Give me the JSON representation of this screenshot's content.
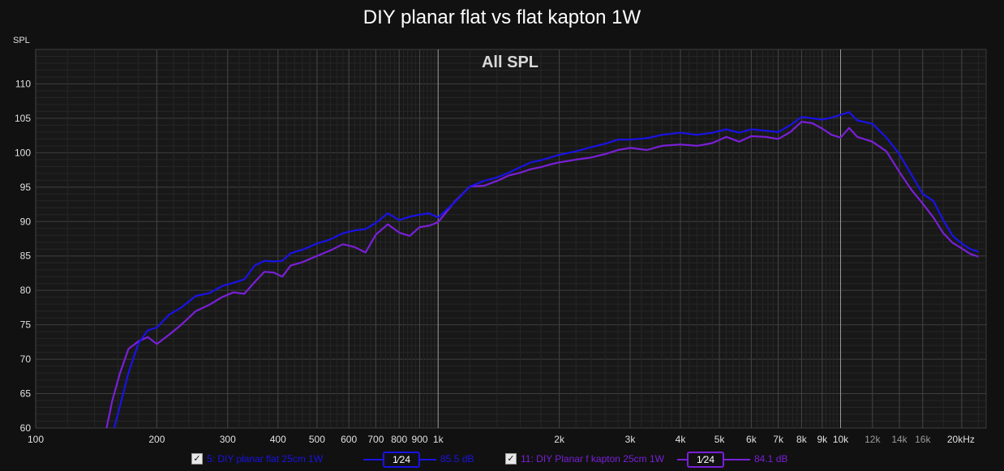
{
  "chart_data": {
    "type": "line",
    "title": "DIY planar flat vs flat kapton 1W",
    "subtitle": "All SPL",
    "xlabel": "",
    "ylabel": "SPL",
    "x_scale": "log",
    "xlim": [
      100,
      23000
    ],
    "ylim": [
      60,
      115
    ],
    "y_ticks": [
      60,
      65,
      70,
      75,
      80,
      85,
      90,
      95,
      100,
      105,
      110
    ],
    "x_ticks": [
      {
        "value": 100,
        "label": "100",
        "emphasis": "major"
      },
      {
        "value": 200,
        "label": "200",
        "emphasis": "major"
      },
      {
        "value": 300,
        "label": "300",
        "emphasis": "major"
      },
      {
        "value": 400,
        "label": "400",
        "emphasis": "major"
      },
      {
        "value": 500,
        "label": "500",
        "emphasis": "major"
      },
      {
        "value": 600,
        "label": "600",
        "emphasis": "major"
      },
      {
        "value": 700,
        "label": "700",
        "emphasis": "major"
      },
      {
        "value": 800,
        "label": "800",
        "emphasis": "major"
      },
      {
        "value": 900,
        "label": "900",
        "emphasis": "major"
      },
      {
        "value": 1000,
        "label": "1k",
        "emphasis": "major"
      },
      {
        "value": 2000,
        "label": "2k",
        "emphasis": "major"
      },
      {
        "value": 3000,
        "label": "3k",
        "emphasis": "major"
      },
      {
        "value": 4000,
        "label": "4k",
        "emphasis": "major"
      },
      {
        "value": 5000,
        "label": "5k",
        "emphasis": "major"
      },
      {
        "value": 6000,
        "label": "6k",
        "emphasis": "major"
      },
      {
        "value": 7000,
        "label": "7k",
        "emphasis": "major"
      },
      {
        "value": 8000,
        "label": "8k",
        "emphasis": "major"
      },
      {
        "value": 9000,
        "label": "9k",
        "emphasis": "major"
      },
      {
        "value": 10000,
        "label": "10k",
        "emphasis": "major"
      },
      {
        "value": 12000,
        "label": "12k",
        "emphasis": "minor"
      },
      {
        "value": 14000,
        "label": "14k",
        "emphasis": "minor"
      },
      {
        "value": 16000,
        "label": "16k",
        "emphasis": "minor"
      },
      {
        "value": 20000,
        "label": "20kHz",
        "emphasis": "major"
      }
    ],
    "grid": true,
    "series": [
      {
        "name": "5: DIY planar flat 25cm 1W",
        "color": "#1a12e6",
        "points": [
          [
            150,
            56
          ],
          [
            160,
            62
          ],
          [
            170,
            68
          ],
          [
            180,
            72.3
          ],
          [
            190,
            74.2
          ],
          [
            200,
            74.6
          ],
          [
            215,
            76.5
          ],
          [
            230,
            77.5
          ],
          [
            250,
            79.2
          ],
          [
            270,
            79.6
          ],
          [
            290,
            80.6
          ],
          [
            310,
            81.1
          ],
          [
            330,
            81.6
          ],
          [
            350,
            83.6
          ],
          [
            370,
            84.3
          ],
          [
            390,
            84.2
          ],
          [
            410,
            84.3
          ],
          [
            430,
            85.4
          ],
          [
            460,
            85.9
          ],
          [
            500,
            86.8
          ],
          [
            540,
            87.4
          ],
          [
            580,
            88.3
          ],
          [
            620,
            88.7
          ],
          [
            660,
            88.9
          ],
          [
            700,
            89.8
          ],
          [
            750,
            91.2
          ],
          [
            800,
            90.2
          ],
          [
            850,
            90.7
          ],
          [
            900,
            91.0
          ],
          [
            950,
            91.2
          ],
          [
            1000,
            90.6
          ],
          [
            1100,
            92.8
          ],
          [
            1200,
            95.1
          ],
          [
            1300,
            95.9
          ],
          [
            1400,
            96.4
          ],
          [
            1500,
            97.1
          ],
          [
            1600,
            97.9
          ],
          [
            1700,
            98.6
          ],
          [
            1800,
            98.9
          ],
          [
            1900,
            99.3
          ],
          [
            2000,
            99.7
          ],
          [
            2200,
            100.2
          ],
          [
            2400,
            100.8
          ],
          [
            2600,
            101.3
          ],
          [
            2800,
            101.9
          ],
          [
            3000,
            101.9
          ],
          [
            3300,
            102.1
          ],
          [
            3600,
            102.6
          ],
          [
            4000,
            102.9
          ],
          [
            4400,
            102.6
          ],
          [
            4800,
            102.9
          ],
          [
            5200,
            103.4
          ],
          [
            5600,
            102.9
          ],
          [
            6000,
            103.4
          ],
          [
            6500,
            103.2
          ],
          [
            7000,
            103.0
          ],
          [
            7500,
            104.0
          ],
          [
            8000,
            105.2
          ],
          [
            8500,
            105.0
          ],
          [
            9000,
            104.8
          ],
          [
            9500,
            105.1
          ],
          [
            10000,
            105.5
          ],
          [
            10500,
            105.9
          ],
          [
            11000,
            104.7
          ],
          [
            12000,
            104.2
          ],
          [
            13000,
            102.2
          ],
          [
            14000,
            99.8
          ],
          [
            15000,
            96.8
          ],
          [
            16000,
            94.0
          ],
          [
            17000,
            93.0
          ],
          [
            18000,
            90.2
          ],
          [
            19000,
            87.9
          ],
          [
            20000,
            86.8
          ],
          [
            21000,
            86.0
          ],
          [
            22000,
            85.6
          ]
        ]
      },
      {
        "name": "11: DIY Planar f kapton 25cm 1W",
        "color": "#7a1fd8",
        "points": [
          [
            145,
            56
          ],
          [
            150,
            60
          ],
          [
            155,
            64
          ],
          [
            162,
            68
          ],
          [
            170,
            71.5
          ],
          [
            180,
            72.6
          ],
          [
            190,
            73.2
          ],
          [
            200,
            72.2
          ],
          [
            215,
            73.6
          ],
          [
            230,
            75.0
          ],
          [
            250,
            77.0
          ],
          [
            270,
            77.9
          ],
          [
            290,
            79.0
          ],
          [
            310,
            79.7
          ],
          [
            330,
            79.5
          ],
          [
            350,
            81.2
          ],
          [
            370,
            82.7
          ],
          [
            390,
            82.6
          ],
          [
            410,
            82.0
          ],
          [
            430,
            83.6
          ],
          [
            460,
            84.1
          ],
          [
            500,
            85.0
          ],
          [
            540,
            85.8
          ],
          [
            580,
            86.7
          ],
          [
            620,
            86.3
          ],
          [
            660,
            85.5
          ],
          [
            700,
            88.1
          ],
          [
            750,
            89.6
          ],
          [
            800,
            88.4
          ],
          [
            850,
            87.9
          ],
          [
            900,
            89.2
          ],
          [
            950,
            89.4
          ],
          [
            1000,
            89.9
          ],
          [
            1100,
            92.9
          ],
          [
            1200,
            95.1
          ],
          [
            1300,
            95.2
          ],
          [
            1400,
            95.9
          ],
          [
            1500,
            96.7
          ],
          [
            1600,
            97.1
          ],
          [
            1700,
            97.6
          ],
          [
            1800,
            97.9
          ],
          [
            1900,
            98.3
          ],
          [
            2000,
            98.6
          ],
          [
            2200,
            99.0
          ],
          [
            2400,
            99.3
          ],
          [
            2600,
            99.8
          ],
          [
            2800,
            100.4
          ],
          [
            3000,
            100.7
          ],
          [
            3300,
            100.4
          ],
          [
            3600,
            101.0
          ],
          [
            4000,
            101.2
          ],
          [
            4400,
            101.0
          ],
          [
            4800,
            101.4
          ],
          [
            5200,
            102.3
          ],
          [
            5600,
            101.6
          ],
          [
            6000,
            102.4
          ],
          [
            6500,
            102.3
          ],
          [
            7000,
            102.0
          ],
          [
            7500,
            103.0
          ],
          [
            8000,
            104.5
          ],
          [
            8500,
            104.3
          ],
          [
            9000,
            103.5
          ],
          [
            9500,
            102.6
          ],
          [
            10000,
            102.2
          ],
          [
            10500,
            103.6
          ],
          [
            11000,
            102.3
          ],
          [
            12000,
            101.6
          ],
          [
            13000,
            100.2
          ],
          [
            14000,
            97.2
          ],
          [
            15000,
            94.6
          ],
          [
            16000,
            92.6
          ],
          [
            17000,
            90.6
          ],
          [
            18000,
            88.3
          ],
          [
            19000,
            86.9
          ],
          [
            20000,
            86.1
          ],
          [
            21000,
            85.3
          ],
          [
            22000,
            84.9
          ]
        ]
      }
    ],
    "legend": {
      "placement": "bottom",
      "items": [
        {
          "checked": true,
          "checkmark": "✓",
          "label": "5: DIY planar flat 25cm 1W",
          "smoothing": "1⁄24",
          "value": "85.5 dB",
          "color": "#1a12e6"
        },
        {
          "checked": true,
          "checkmark": "✓",
          "label": "11: DIY Planar f kapton 25cm 1W",
          "smoothing": "1⁄24",
          "value": "84.1 dB",
          "color": "#7a1fd8"
        }
      ]
    }
  }
}
